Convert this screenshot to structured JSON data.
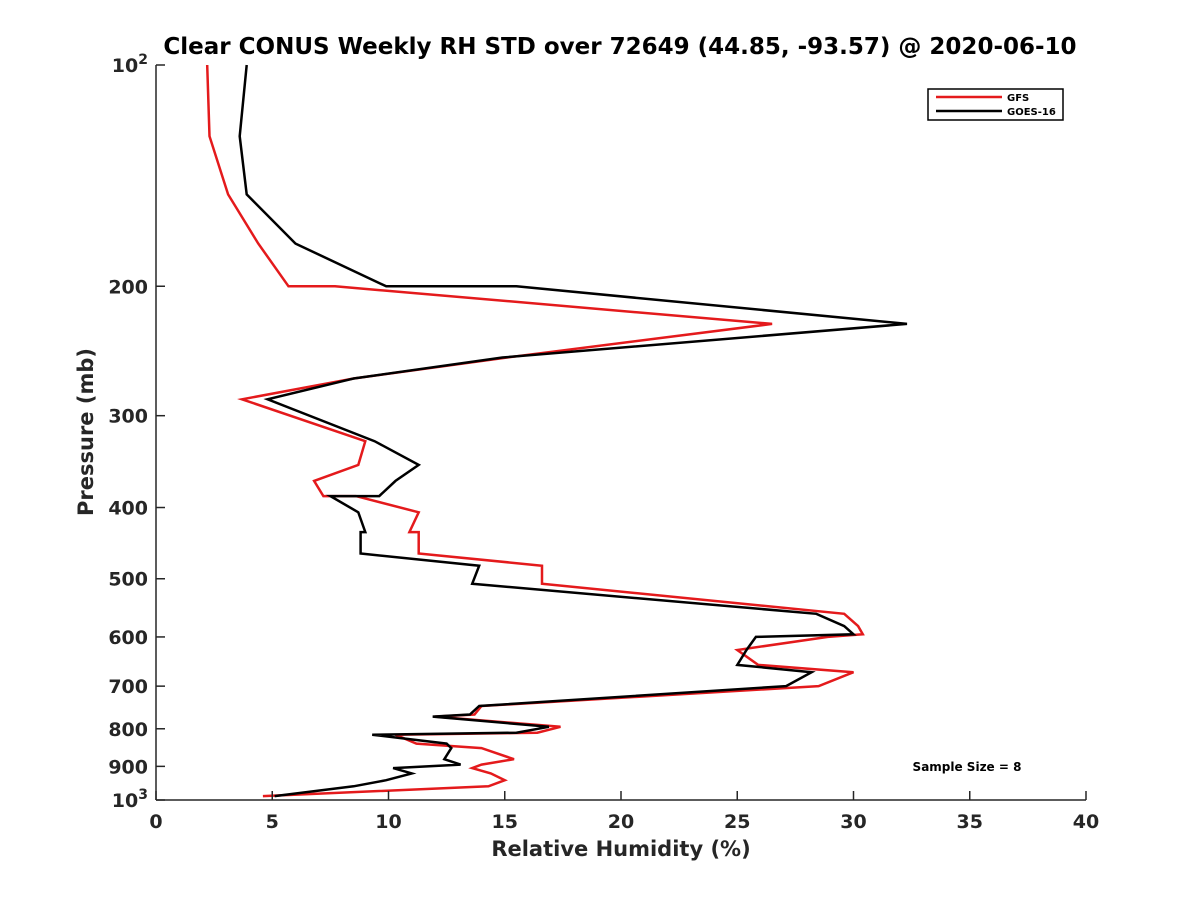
{
  "chart_data": {
    "type": "line",
    "title": "Clear CONUS Weekly RH STD over 72649 (44.85, -93.57) @ 2020-06-10",
    "xlabel": "Relative Humidity (%)",
    "ylabel": "Pressure (mb)",
    "xlim": [
      0,
      40
    ],
    "ylim": [
      100,
      1000
    ],
    "y_scale": "log",
    "y_reversed": true,
    "grid": false,
    "legend_position": "top-right",
    "x_ticks": [
      "0",
      "5",
      "10",
      "15",
      "20",
      "25",
      "30",
      "35",
      "40"
    ],
    "y_ticks": [
      {
        "value": 100,
        "base": "10",
        "exp": "2"
      },
      {
        "value": 200,
        "label": "200"
      },
      {
        "value": 300,
        "label": "300"
      },
      {
        "value": 400,
        "label": "400"
      },
      {
        "value": 500,
        "label": "500"
      },
      {
        "value": 600,
        "label": "600"
      },
      {
        "value": 700,
        "label": "700"
      },
      {
        "value": 800,
        "label": "800"
      },
      {
        "value": 900,
        "label": "900"
      },
      {
        "value": 1000,
        "base": "10",
        "exp": "3"
      }
    ],
    "series": [
      {
        "name": "GFS",
        "color": "#e41a1c",
        "points": [
          [
            2.2,
            100
          ],
          [
            2.3,
            125
          ],
          [
            3.1,
            150
          ],
          [
            4.4,
            175
          ],
          [
            5.7,
            200
          ],
          [
            7.7,
            200
          ],
          [
            26.5,
            225
          ],
          [
            15.1,
            250
          ],
          [
            8.5,
            267
          ],
          [
            3.7,
            285
          ],
          [
            9.0,
            325
          ],
          [
            8.7,
            350
          ],
          [
            6.8,
            368
          ],
          [
            7.2,
            386
          ],
          [
            8.6,
            386
          ],
          [
            11.3,
            406
          ],
          [
            10.9,
            432
          ],
          [
            11.3,
            432
          ],
          [
            11.3,
            462
          ],
          [
            16.6,
            480
          ],
          [
            16.6,
            508
          ],
          [
            29.6,
            558
          ],
          [
            30.2,
            580
          ],
          [
            30.4,
            595
          ],
          [
            28.9,
            600
          ],
          [
            25.0,
            625
          ],
          [
            25.9,
            655
          ],
          [
            30.0,
            670
          ],
          [
            28.5,
            700
          ],
          [
            14.0,
            745
          ],
          [
            13.7,
            765
          ],
          [
            12.0,
            770
          ],
          [
            17.4,
            795
          ],
          [
            16.4,
            810
          ],
          [
            10.3,
            815
          ],
          [
            11.2,
            838
          ],
          [
            14.0,
            850
          ],
          [
            15.4,
            880
          ],
          [
            14.0,
            895
          ],
          [
            13.6,
            905
          ],
          [
            14.4,
            920
          ],
          [
            15.0,
            940
          ],
          [
            14.3,
            958
          ],
          [
            4.6,
            988
          ]
        ]
      },
      {
        "name": "GOES-16",
        "color": "#000000",
        "points": [
          [
            3.9,
            100
          ],
          [
            3.6,
            125
          ],
          [
            3.9,
            150
          ],
          [
            6.0,
            175
          ],
          [
            9.9,
            200
          ],
          [
            15.5,
            200
          ],
          [
            32.3,
            225
          ],
          [
            14.9,
            250
          ],
          [
            8.5,
            267
          ],
          [
            4.8,
            285
          ],
          [
            9.4,
            325
          ],
          [
            11.3,
            350
          ],
          [
            10.3,
            368
          ],
          [
            9.6,
            386
          ],
          [
            7.5,
            386
          ],
          [
            8.7,
            406
          ],
          [
            9.0,
            432
          ],
          [
            8.8,
            432
          ],
          [
            8.8,
            462
          ],
          [
            13.9,
            480
          ],
          [
            13.6,
            508
          ],
          [
            28.4,
            558
          ],
          [
            29.6,
            580
          ],
          [
            30.0,
            595
          ],
          [
            25.8,
            600
          ],
          [
            25.4,
            625
          ],
          [
            25.0,
            655
          ],
          [
            28.2,
            670
          ],
          [
            27.1,
            700
          ],
          [
            13.9,
            745
          ],
          [
            13.5,
            765
          ],
          [
            11.9,
            770
          ],
          [
            16.9,
            795
          ],
          [
            15.5,
            810
          ],
          [
            9.3,
            815
          ],
          [
            12.5,
            838
          ],
          [
            12.7,
            850
          ],
          [
            12.4,
            880
          ],
          [
            13.1,
            895
          ],
          [
            10.2,
            905
          ],
          [
            11.0,
            920
          ],
          [
            9.9,
            940
          ],
          [
            8.5,
            958
          ],
          [
            5.1,
            988
          ]
        ]
      }
    ],
    "annotations": [
      "Sample Size = 8"
    ]
  }
}
